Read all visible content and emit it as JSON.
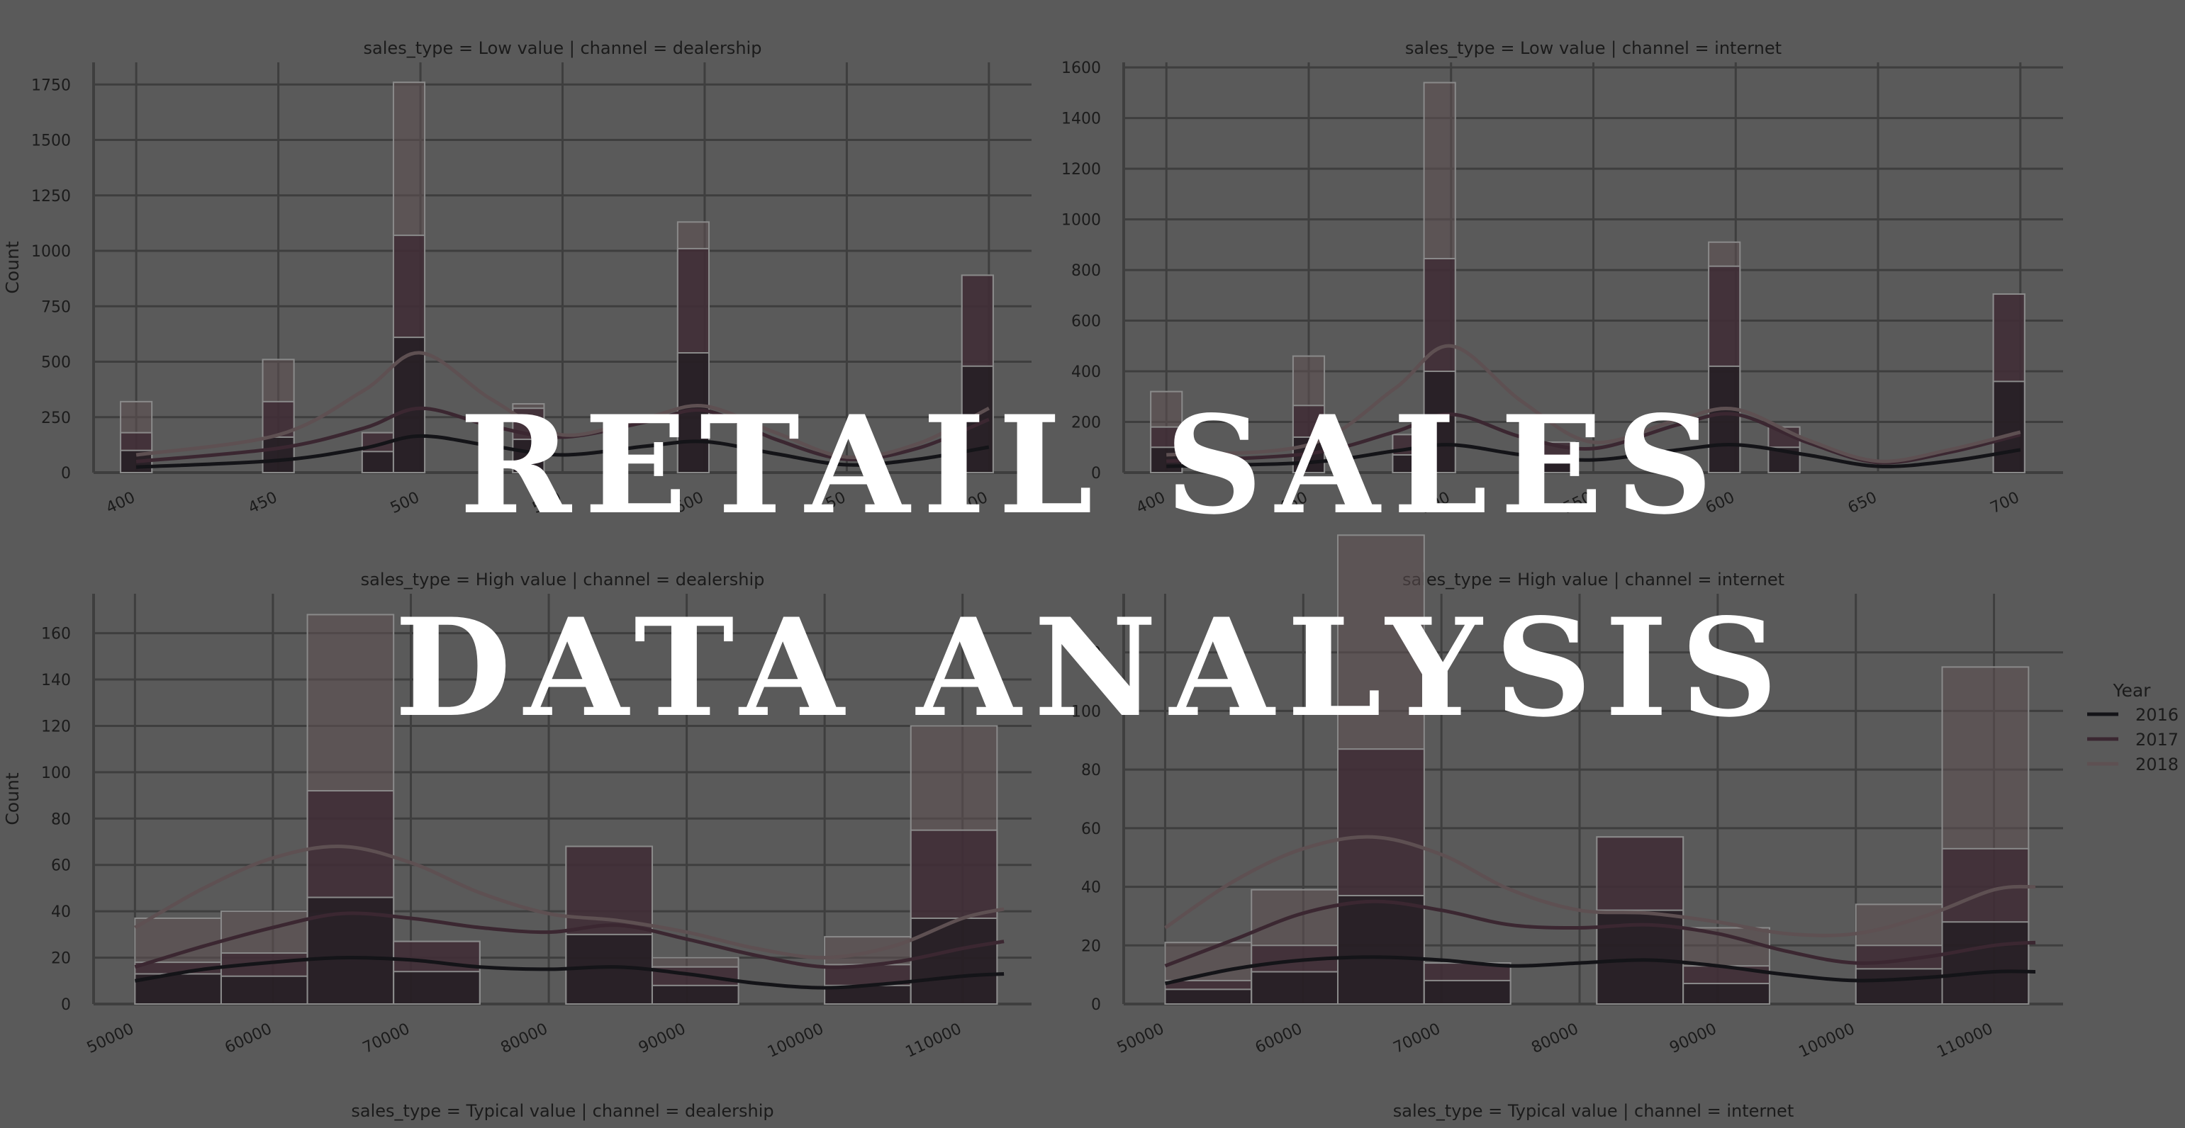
{
  "overlay": {
    "title_line_1": "RETAIL SALES",
    "title_line_2": "DATA ANALYSIS"
  },
  "colors": {
    "background": "#5a5a5a",
    "grid": "#3e3e3e",
    "year_2016": "#141418",
    "year_2017": "#3b2731",
    "year_2018": "#5e5052"
  },
  "chart_data": [
    {
      "type": "histogram",
      "title": "sales_type = Low value | channel = dealership",
      "xlabel": "",
      "ylabel": "Count",
      "xlim": [
        385,
        715
      ],
      "ylim": [
        0,
        1850
      ],
      "xticks": [
        400,
        450,
        500,
        550,
        600,
        650,
        700
      ],
      "yticks": [
        0,
        250,
        500,
        750,
        1000,
        1250,
        1500,
        1750
      ],
      "xtick_labels": [
        "400",
        "450",
        "500",
        "550",
        "600",
        "650",
        "700"
      ],
      "ytick_labels": [
        "0",
        "250",
        "500",
        "750",
        "1000",
        "1250",
        "1500",
        "1750"
      ],
      "bin_width": 11,
      "bins": [
        {
          "x": 400,
          "y2016": 100,
          "y2017": 180,
          "y2018": 320
        },
        {
          "x": 450,
          "y2016": 160,
          "y2017": 320,
          "y2018": 510
        },
        {
          "x": 485,
          "y2016": 95,
          "y2017": 180,
          "y2018": 180
        },
        {
          "x": 496,
          "y2016": 610,
          "y2017": 1070,
          "y2018": 1760
        },
        {
          "x": 538,
          "y2016": 150,
          "y2017": 290,
          "y2018": 310
        },
        {
          "x": 596,
          "y2016": 540,
          "y2017": 1010,
          "y2018": 1130
        },
        {
          "x": 696,
          "y2016": 480,
          "y2017": 890,
          "y2018": 890
        }
      ],
      "kde": [
        {
          "name": "2016",
          "points": [
            [
              400,
              25
            ],
            [
              450,
              55
            ],
            [
              480,
              110
            ],
            [
              500,
              165
            ],
            [
              525,
              120
            ],
            [
              550,
              80
            ],
            [
              580,
              120
            ],
            [
              600,
              140
            ],
            [
              625,
              85
            ],
            [
              650,
              35
            ],
            [
              675,
              60
            ],
            [
              700,
              115
            ]
          ]
        },
        {
          "name": "2017",
          "points": [
            [
              400,
              50
            ],
            [
              450,
              110
            ],
            [
              480,
              200
            ],
            [
              500,
              290
            ],
            [
              525,
              210
            ],
            [
              550,
              160
            ],
            [
              580,
              230
            ],
            [
              600,
              280
            ],
            [
              625,
              150
            ],
            [
              650,
              60
            ],
            [
              675,
              110
            ],
            [
              700,
              240
            ]
          ]
        },
        {
          "name": "2018",
          "points": [
            [
              400,
              80
            ],
            [
              450,
              170
            ],
            [
              480,
              370
            ],
            [
              500,
              540
            ],
            [
              525,
              330
            ],
            [
              550,
              170
            ],
            [
              580,
              250
            ],
            [
              600,
              300
            ],
            [
              625,
              180
            ],
            [
              650,
              70
            ],
            [
              675,
              130
            ],
            [
              700,
              290
            ]
          ]
        }
      ]
    },
    {
      "type": "histogram",
      "title": "sales_type = Low value | channel = internet",
      "xlabel": "",
      "ylabel": "",
      "xlim": [
        385,
        715
      ],
      "ylim": [
        0,
        1620
      ],
      "xticks": [
        400,
        450,
        500,
        550,
        600,
        650,
        700
      ],
      "yticks": [
        0,
        200,
        400,
        600,
        800,
        1000,
        1200,
        1400,
        1600
      ],
      "xtick_labels": [
        "400",
        "450",
        "500",
        "550",
        "600",
        "650",
        "700"
      ],
      "ytick_labels": [
        "0",
        "200",
        "400",
        "600",
        "800",
        "1000",
        "1200",
        "1400",
        "1600"
      ],
      "bin_width": 11,
      "bins": [
        {
          "x": 400,
          "y2016": 100,
          "y2017": 180,
          "y2018": 320
        },
        {
          "x": 450,
          "y2016": 140,
          "y2017": 265,
          "y2018": 460
        },
        {
          "x": 485,
          "y2016": 70,
          "y2017": 150,
          "y2018": 150
        },
        {
          "x": 496,
          "y2016": 400,
          "y2017": 845,
          "y2018": 1540
        },
        {
          "x": 538,
          "y2016": 60,
          "y2017": 120,
          "y2018": 120
        },
        {
          "x": 596,
          "y2016": 420,
          "y2017": 815,
          "y2018": 910
        },
        {
          "x": 617,
          "y2016": 100,
          "y2017": 180,
          "y2018": 180
        },
        {
          "x": 696,
          "y2016": 360,
          "y2017": 705,
          "y2018": 705
        }
      ],
      "kde": [
        {
          "name": "2016",
          "points": [
            [
              400,
              25
            ],
            [
              450,
              40
            ],
            [
              480,
              85
            ],
            [
              500,
              110
            ],
            [
              525,
              70
            ],
            [
              550,
              50
            ],
            [
              580,
              90
            ],
            [
              600,
              110
            ],
            [
              625,
              70
            ],
            [
              650,
              25
            ],
            [
              675,
              45
            ],
            [
              700,
              90
            ]
          ]
        },
        {
          "name": "2017",
          "points": [
            [
              400,
              45
            ],
            [
              450,
              75
            ],
            [
              480,
              160
            ],
            [
              500,
              230
            ],
            [
              525,
              140
            ],
            [
              550,
              95
            ],
            [
              580,
              190
            ],
            [
              600,
              230
            ],
            [
              625,
              120
            ],
            [
              650,
              40
            ],
            [
              675,
              80
            ],
            [
              700,
              150
            ]
          ]
        },
        {
          "name": "2018",
          "points": [
            [
              400,
              70
            ],
            [
              450,
              110
            ],
            [
              480,
              330
            ],
            [
              500,
              500
            ],
            [
              525,
              280
            ],
            [
              550,
              120
            ],
            [
              580,
              210
            ],
            [
              600,
              250
            ],
            [
              625,
              130
            ],
            [
              650,
              45
            ],
            [
              675,
              90
            ],
            [
              700,
              160
            ]
          ]
        }
      ]
    },
    {
      "type": "histogram",
      "title": "sales_type = High value | channel = dealership",
      "xlabel": "",
      "ylabel": "Count",
      "xlim": [
        47000,
        115000
      ],
      "ylim": [
        0,
        177
      ],
      "xticks": [
        50000,
        60000,
        70000,
        80000,
        90000,
        100000,
        110000
      ],
      "yticks": [
        0,
        20,
        40,
        60,
        80,
        100,
        120,
        140,
        160
      ],
      "xtick_labels": [
        "50000",
        "60000",
        "70000",
        "80000",
        "90000",
        "100000",
        "110000"
      ],
      "ytick_labels": [
        "0",
        "20",
        "40",
        "60",
        "80",
        "100",
        "120",
        "140",
        "160"
      ],
      "bin_width": 6250,
      "bins": [
        {
          "x": 53125,
          "y2016": 13,
          "y2017": 18,
          "y2018": 37
        },
        {
          "x": 59375,
          "y2016": 12,
          "y2017": 22,
          "y2018": 40
        },
        {
          "x": 65625,
          "y2016": 46,
          "y2017": 92,
          "y2018": 168
        },
        {
          "x": 71875,
          "y2016": 14,
          "y2017": 27,
          "y2018": 27
        },
        {
          "x": 84375,
          "y2016": 30,
          "y2017": 68,
          "y2018": 68
        },
        {
          "x": 90625,
          "y2016": 8,
          "y2017": 16,
          "y2018": 20
        },
        {
          "x": 103125,
          "y2016": 8,
          "y2017": 17,
          "y2018": 29
        },
        {
          "x": 109375,
          "y2016": 37,
          "y2017": 75,
          "y2018": 120
        }
      ],
      "kde": [
        {
          "name": "2016",
          "points": [
            [
              50000,
              10
            ],
            [
              55000,
              15
            ],
            [
              60000,
              18
            ],
            [
              65000,
              20
            ],
            [
              70000,
              19
            ],
            [
              75000,
              16
            ],
            [
              80000,
              15
            ],
            [
              85000,
              16
            ],
            [
              90000,
              13
            ],
            [
              95000,
              9
            ],
            [
              100000,
              7
            ],
            [
              105000,
              9
            ],
            [
              110000,
              12
            ],
            [
              113000,
              13
            ]
          ]
        },
        {
          "name": "2017",
          "points": [
            [
              50000,
              16
            ],
            [
              55000,
              25
            ],
            [
              60000,
              33
            ],
            [
              65000,
              39
            ],
            [
              70000,
              37
            ],
            [
              75000,
              33
            ],
            [
              80000,
              31
            ],
            [
              85000,
              34
            ],
            [
              90000,
              28
            ],
            [
              95000,
              21
            ],
            [
              100000,
              16
            ],
            [
              105000,
              18
            ],
            [
              110000,
              24
            ],
            [
              113000,
              27
            ]
          ]
        },
        {
          "name": "2018",
          "points": [
            [
              50000,
              33
            ],
            [
              55000,
              50
            ],
            [
              60000,
              63
            ],
            [
              65000,
              68
            ],
            [
              70000,
              61
            ],
            [
              75000,
              48
            ],
            [
              80000,
              39
            ],
            [
              85000,
              36
            ],
            [
              90000,
              31
            ],
            [
              95000,
              24
            ],
            [
              100000,
              20
            ],
            [
              105000,
              25
            ],
            [
              110000,
              37
            ],
            [
              113000,
              41
            ]
          ]
        }
      ]
    },
    {
      "type": "histogram",
      "title": "sales_type = High value | channel = internet",
      "xlabel": "",
      "ylabel": "",
      "xlim": [
        47000,
        115000
      ],
      "ylim": [
        0,
        140
      ],
      "xticks": [
        50000,
        60000,
        70000,
        80000,
        90000,
        100000,
        110000
      ],
      "yticks": [
        0,
        20,
        40,
        60,
        80,
        100,
        120
      ],
      "xtick_labels": [
        "50000",
        "60000",
        "70000",
        "80000",
        "90000",
        "100000",
        "110000"
      ],
      "ytick_labels": [
        "0",
        "20",
        "40",
        "60",
        "80",
        "100",
        "120"
      ],
      "bin_width": 6250,
      "bins": [
        {
          "x": 53125,
          "y2016": 5,
          "y2017": 8,
          "y2018": 21
        },
        {
          "x": 59375,
          "y2016": 11,
          "y2017": 20,
          "y2018": 39
        },
        {
          "x": 65625,
          "y2016": 37,
          "y2017": 87,
          "y2018": 160
        },
        {
          "x": 71875,
          "y2016": 8,
          "y2017": 14,
          "y2018": 14
        },
        {
          "x": 84375,
          "y2016": 32,
          "y2017": 57,
          "y2018": 57
        },
        {
          "x": 90625,
          "y2016": 7,
          "y2017": 13,
          "y2018": 26
        },
        {
          "x": 103125,
          "y2016": 12,
          "y2017": 20,
          "y2018": 34
        },
        {
          "x": 109375,
          "y2016": 28,
          "y2017": 53,
          "y2018": 115
        }
      ],
      "kde": [
        {
          "name": "2016",
          "points": [
            [
              50000,
              7
            ],
            [
              55000,
              12
            ],
            [
              60000,
              15
            ],
            [
              65000,
              16
            ],
            [
              70000,
              15
            ],
            [
              75000,
              13
            ],
            [
              80000,
              14
            ],
            [
              85000,
              15
            ],
            [
              90000,
              13
            ],
            [
              95000,
              10
            ],
            [
              100000,
              8
            ],
            [
              105000,
              9
            ],
            [
              110000,
              11
            ],
            [
              113000,
              11
            ]
          ]
        },
        {
          "name": "2017",
          "points": [
            [
              50000,
              13
            ],
            [
              55000,
              22
            ],
            [
              60000,
              31
            ],
            [
              65000,
              35
            ],
            [
              70000,
              32
            ],
            [
              75000,
              27
            ],
            [
              80000,
              26
            ],
            [
              85000,
              27
            ],
            [
              90000,
              24
            ],
            [
              95000,
              18
            ],
            [
              100000,
              14
            ],
            [
              105000,
              16
            ],
            [
              110000,
              20
            ],
            [
              113000,
              21
            ]
          ]
        },
        {
          "name": "2018",
          "points": [
            [
              50000,
              26
            ],
            [
              55000,
              42
            ],
            [
              60000,
              53
            ],
            [
              65000,
              57
            ],
            [
              70000,
              51
            ],
            [
              75000,
              39
            ],
            [
              80000,
              32
            ],
            [
              85000,
              31
            ],
            [
              90000,
              28
            ],
            [
              95000,
              24
            ],
            [
              100000,
              24
            ],
            [
              105000,
              30
            ],
            [
              110000,
              39
            ],
            [
              113000,
              40
            ]
          ]
        }
      ]
    },
    {
      "type": "histogram",
      "title": "sales_type = Typical value | channel = dealership"
    },
    {
      "type": "histogram",
      "title": "sales_type = Typical value | channel = internet"
    }
  ],
  "legend": {
    "title": "Year",
    "entries": [
      "2016",
      "2017",
      "2018"
    ]
  }
}
